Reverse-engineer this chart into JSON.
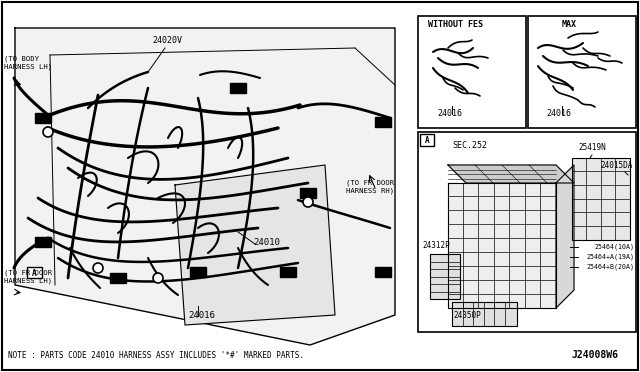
{
  "background_color": "#ffffff",
  "border_color": "#000000",
  "note_text": "NOTE : PARTS CODE 24010 HARNESS ASSY INCLUDES '*#' MARKED PARTS.",
  "part_number": "J24008W6",
  "labels": {
    "main_harness": "24010",
    "sub_harness": "24016",
    "connector1": "24020V",
    "to_body": "(TO BODY\nHARNESS LH)",
    "to_fr_door_rh": "(TO FR DOOR\nHARNESS RH)",
    "to_fr_door_lh": "(TO FR DOOR\nHARNESS LH)",
    "without_fes": "WITHOUT FES",
    "max_label": "MAX",
    "sec252": "SEC.252",
    "part_24312p": "24312P",
    "part_24350p": "24350P",
    "part_25419n": "25419N",
    "part_24015da": "24015DA",
    "part_25464_10a": "25464(10A)",
    "part_25464_a19a": "25464+A(19A)",
    "part_25464_b120a": "25464+B(20A)",
    "inset_a": "A"
  },
  "colors": {
    "line": "#000000",
    "bg": "#ffffff"
  }
}
